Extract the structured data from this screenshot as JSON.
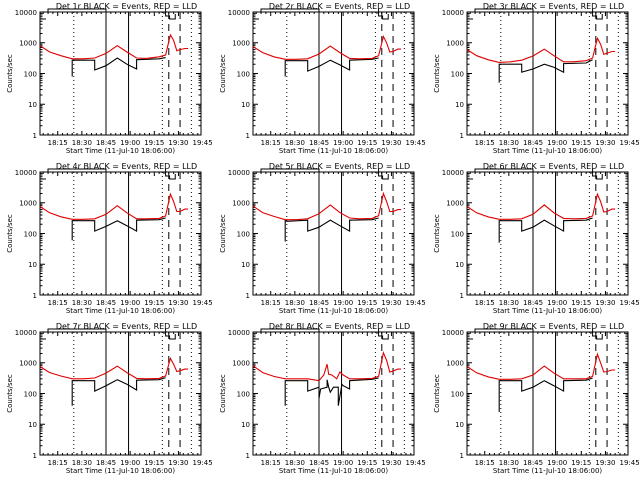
{
  "chart_data": {
    "type": "line",
    "layout": "3x3 grid",
    "shared": {
      "xlabel": "Start Time (11-Jul-10 18:06:00)",
      "ylabel": "Counts/sec",
      "yscale": "log",
      "ylim": [
        1,
        10000
      ],
      "yticks": [
        1,
        10,
        100,
        1000,
        10000
      ],
      "ytick_labels": [
        "1",
        "10",
        "100",
        "1000",
        "10000"
      ],
      "xlim_minutes_after_18_00": [
        4,
        104
      ],
      "xticks_minutes_after_18_00": [
        15,
        30,
        45,
        60,
        75,
        90,
        105
      ],
      "xtick_labels": [
        "18:15",
        "18:30",
        "18:45",
        "19:00",
        "19:15",
        "19:30",
        "19:45"
      ],
      "legend_text": "BLACK = Events, RED = LLD",
      "series_colors": {
        "events": "#000000",
        "lld": "#e00000"
      },
      "vertical_markers": [
        {
          "style": "dotted",
          "x": 25
        },
        {
          "style": "solid",
          "x": 45
        },
        {
          "style": "solid",
          "x": 59
        },
        {
          "style": "dotted",
          "x": 80
        },
        {
          "style": "dashed",
          "x": 84
        },
        {
          "style": "dashed",
          "x": 91
        },
        {
          "style": "dotted",
          "x": 98
        }
      ]
    },
    "panels": [
      {
        "title": "Det 1r BLACK = Events, RED = LLD",
        "series": [
          {
            "name": "Events",
            "color": "#000000",
            "x": [
              24,
              24,
              25,
              38,
              38,
              45,
              52,
              58,
              64,
              64,
              78,
              82,
              82,
              85
            ],
            "y": [
              80,
              270,
              270,
              270,
              130,
              180,
              320,
              200,
              140,
              280,
              300,
              330,
              null,
              null
            ]
          },
          {
            "name": "LLD",
            "color": "#e00000",
            "x": [
              4,
              10,
              17,
              24,
              31,
              38,
              45,
              52,
              58,
              64,
              70,
              78,
              82,
              85,
              87,
              89,
              91,
              94,
              96
            ],
            "y": [
              800,
              500,
              380,
              300,
              300,
              320,
              450,
              800,
              500,
              320,
              310,
              350,
              400,
              1800,
              1200,
              550,
              600,
              650,
              650
            ]
          }
        ]
      },
      {
        "title": "Det 2r BLACK = Events, RED = LLD",
        "series": [
          {
            "name": "Events",
            "color": "#000000",
            "x": [
              24,
              24,
              25,
              38,
              38,
              45,
              52,
              58,
              64,
              64,
              78,
              82
            ],
            "y": [
              80,
              260,
              260,
              260,
              120,
              170,
              270,
              190,
              130,
              270,
              290,
              320
            ]
          },
          {
            "name": "LLD",
            "color": "#e00000",
            "x": [
              4,
              10,
              17,
              24,
              31,
              38,
              45,
              52,
              58,
              64,
              70,
              78,
              82,
              85,
              87,
              89,
              91,
              94,
              96
            ],
            "y": [
              750,
              480,
              350,
              290,
              290,
              300,
              430,
              780,
              480,
              310,
              300,
              310,
              380,
              1600,
              1000,
              500,
              520,
              620,
              620
            ]
          }
        ]
      },
      {
        "title": "Det 3r BLACK = Events, RED = LLD",
        "series": [
          {
            "name": "Events",
            "color": "#000000",
            "x": [
              24,
              24,
              25,
              38,
              38,
              45,
              52,
              58,
              64,
              64,
              78,
              82
            ],
            "y": [
              50,
              200,
              200,
              200,
              110,
              140,
              200,
              160,
              110,
              210,
              220,
              280
            ]
          },
          {
            "name": "LLD",
            "color": "#e00000",
            "x": [
              4,
              10,
              17,
              24,
              31,
              38,
              45,
              52,
              58,
              64,
              70,
              78,
              82,
              85,
              87,
              89,
              91,
              94,
              96
            ],
            "y": [
              600,
              380,
              280,
              230,
              240,
              270,
              370,
              620,
              380,
              240,
              240,
              260,
              320,
              1400,
              900,
              420,
              460,
              520,
              520
            ]
          }
        ]
      },
      {
        "title": "Det 4r BLACK = Events, RED = LLD",
        "series": [
          {
            "name": "Events",
            "color": "#000000",
            "x": [
              24,
              24,
              25,
              38,
              38,
              45,
              52,
              58,
              64,
              64,
              78,
              82
            ],
            "y": [
              60,
              260,
              260,
              260,
              120,
              170,
              260,
              180,
              120,
              270,
              280,
              320
            ]
          },
          {
            "name": "LLD",
            "color": "#e00000",
            "x": [
              4,
              10,
              17,
              24,
              31,
              38,
              45,
              52,
              58,
              64,
              70,
              78,
              82,
              85,
              87,
              89,
              91,
              94,
              96
            ],
            "y": [
              750,
              470,
              350,
              290,
              290,
              300,
              420,
              800,
              470,
              300,
              300,
              310,
              370,
              1900,
              1100,
              520,
              520,
              620,
              620
            ]
          }
        ]
      },
      {
        "title": "Det 5r BLACK = Events, RED = LLD",
        "series": [
          {
            "name": "Events",
            "color": "#000000",
            "x": [
              24,
              24,
              25,
              38,
              38,
              45,
              52,
              58,
              64,
              64,
              78,
              82
            ],
            "y": [
              55,
              270,
              250,
              270,
              120,
              160,
              270,
              180,
              120,
              270,
              280,
              320
            ]
          },
          {
            "name": "LLD",
            "color": "#e00000",
            "x": [
              4,
              10,
              17,
              24,
              31,
              38,
              45,
              52,
              58,
              64,
              70,
              78,
              82,
              85,
              87,
              89,
              91,
              94,
              96
            ],
            "y": [
              780,
              480,
              360,
              280,
              280,
              300,
              440,
              850,
              480,
              320,
              300,
              310,
              380,
              2000,
              1100,
              520,
              520,
              600,
              600
            ]
          }
        ]
      },
      {
        "title": "Det 6r BLACK = Events, RED = LLD",
        "series": [
          {
            "name": "Events",
            "color": "#000000",
            "x": [
              24,
              24,
              25,
              38,
              38,
              45,
              52,
              58,
              64,
              64,
              78,
              82
            ],
            "y": [
              50,
              260,
              260,
              260,
              120,
              160,
              270,
              180,
              120,
              260,
              270,
              320
            ]
          },
          {
            "name": "LLD",
            "color": "#e00000",
            "x": [
              4,
              10,
              17,
              24,
              31,
              38,
              45,
              52,
              58,
              64,
              70,
              78,
              82,
              85,
              87,
              89,
              91,
              94,
              96
            ],
            "y": [
              750,
              470,
              350,
              290,
              290,
              300,
              420,
              850,
              470,
              310,
              300,
              310,
              370,
              1900,
              1100,
              500,
              520,
              620,
              620
            ]
          }
        ]
      },
      {
        "title": "Det 7r BLACK = Events, RED = LLD",
        "series": [
          {
            "name": "Events",
            "color": "#000000",
            "x": [
              24,
              24,
              25,
              38,
              38,
              45,
              52,
              58,
              64,
              64,
              78,
              82
            ],
            "y": [
              40,
              260,
              260,
              260,
              120,
              180,
              280,
              200,
              130,
              270,
              280,
              330
            ]
          },
          {
            "name": "LLD",
            "color": "#e00000",
            "x": [
              4,
              10,
              17,
              24,
              31,
              38,
              45,
              52,
              58,
              64,
              70,
              78,
              82,
              85,
              87,
              89,
              91,
              94,
              96
            ],
            "y": [
              750,
              480,
              370,
              300,
              300,
              320,
              460,
              780,
              480,
              310,
              300,
              310,
              370,
              1400,
              900,
              520,
              550,
              620,
              620
            ]
          }
        ]
      },
      {
        "title": "Det 8r BLACK = Events, RED = LLD",
        "series": [
          {
            "name": "Events",
            "color": "#000000",
            "x": [
              24,
              24,
              25,
              38,
              38,
              45,
              45,
              46,
              50,
              50,
              51,
              52,
              54,
              57,
              57,
              59,
              59,
              60,
              64,
              64,
              78,
              82
            ],
            "y": [
              40,
              260,
              260,
              260,
              120,
              160,
              70,
              140,
              160,
              280,
              160,
              110,
              160,
              160,
              40,
              170,
              200,
              180,
              140,
              260,
              290,
              320
            ]
          },
          {
            "name": "LLD",
            "color": "#e00000",
            "x": [
              4,
              10,
              17,
              24,
              31,
              38,
              45,
              48,
              50,
              51,
              53,
              56,
              58,
              60,
              64,
              70,
              78,
              82,
              85,
              87,
              89,
              91,
              94,
              96
            ],
            "y": [
              800,
              480,
              360,
              300,
              300,
              300,
              260,
              400,
              900,
              420,
              400,
              300,
              500,
              400,
              300,
              300,
              310,
              360,
              2100,
              1200,
              500,
              540,
              620,
              620
            ]
          }
        ]
      },
      {
        "title": "Det 9r BLACK = Events, RED = LLD",
        "series": [
          {
            "name": "Events",
            "color": "#000000",
            "x": [
              24,
              24,
              25,
              38,
              38,
              45,
              52,
              58,
              64,
              64,
              78,
              82
            ],
            "y": [
              25,
              260,
              260,
              260,
              120,
              160,
              260,
              180,
              120,
              260,
              270,
              320
            ]
          },
          {
            "name": "LLD",
            "color": "#e00000",
            "x": [
              4,
              10,
              17,
              24,
              31,
              38,
              45,
              52,
              58,
              64,
              70,
              78,
              82,
              85,
              87,
              89,
              91,
              94,
              96
            ],
            "y": [
              750,
              470,
              350,
              290,
              290,
              300,
              400,
              780,
              460,
              300,
              300,
              300,
              360,
              1900,
              1000,
              500,
              520,
              580,
              580
            ]
          }
        ]
      }
    ]
  }
}
